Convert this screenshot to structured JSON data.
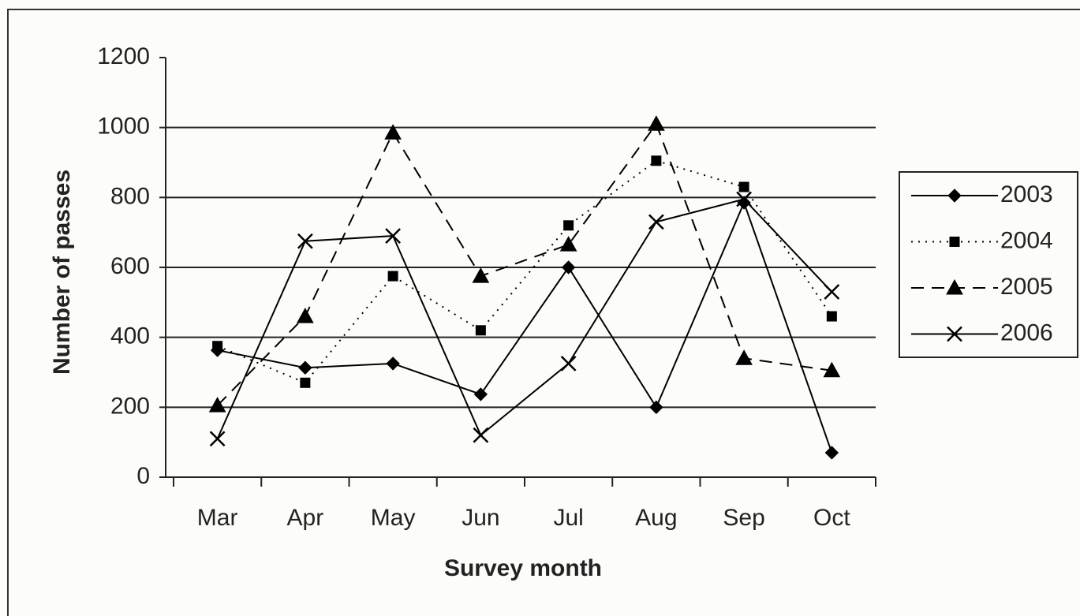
{
  "chart_data": {
    "type": "line",
    "x_label": "Survey month",
    "y_label": "Number of passes",
    "categories": [
      "Mar",
      "Apr",
      "May",
      "Jun",
      "Jul",
      "Aug",
      "Sep",
      "Oct"
    ],
    "series": [
      {
        "name": "2003",
        "color": "#000000",
        "marker": "diamond",
        "dash": "solid",
        "values": [
          363,
          313,
          325,
          237,
          600,
          200,
          785,
          70
        ]
      },
      {
        "name": "2004",
        "color": "#000000",
        "marker": "square",
        "dash": "dotted",
        "values": [
          375,
          270,
          575,
          420,
          720,
          905,
          830,
          460
        ]
      },
      {
        "name": "2005",
        "color": "#000000",
        "marker": "triangle",
        "dash": "dashed",
        "values": [
          205,
          460,
          985,
          575,
          665,
          1010,
          340,
          305
        ]
      },
      {
        "name": "2006",
        "color": "#000000",
        "marker": "x",
        "dash": "solid",
        "values": [
          110,
          675,
          690,
          120,
          325,
          730,
          795,
          530
        ]
      }
    ],
    "ylim": [
      0,
      1200
    ],
    "yticks": [
      0,
      200,
      400,
      600,
      800,
      1000,
      1200
    ],
    "grid": true,
    "legend": "right"
  }
}
